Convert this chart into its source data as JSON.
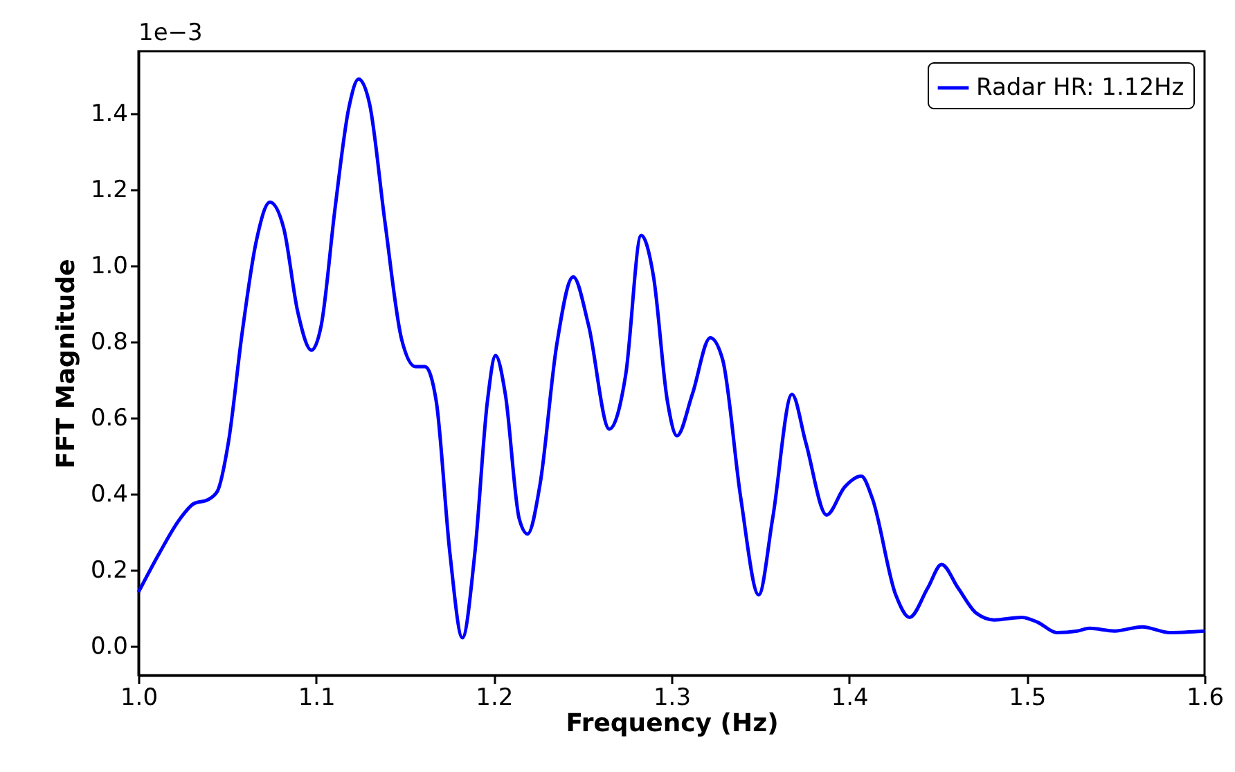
{
  "chart_data": {
    "type": "line",
    "xlabel": "Frequency (Hz)",
    "ylabel": "FFT Magnitude",
    "annotations": [
      "1e−3"
    ],
    "x": [
      1.0,
      1.0117,
      1.0234,
      1.0312,
      1.039,
      1.0444,
      1.0506,
      1.0584,
      1.0662,
      1.074,
      1.0818,
      1.0896,
      1.0974,
      1.1029,
      1.1107,
      1.1184,
      1.1239,
      1.1301,
      1.1387,
      1.1481,
      1.1559,
      1.1613,
      1.1676,
      1.1753,
      1.1823,
      1.1893,
      1.1964,
      1.201,
      1.2065,
      1.2143,
      1.219,
      1.226,
      1.2353,
      1.2447,
      1.2533,
      1.265,
      1.2743,
      1.2829,
      1.2899,
      1.2977,
      1.3031,
      1.3117,
      1.3218,
      1.3288,
      1.339,
      1.3491,
      1.3569,
      1.3678,
      1.3756,
      1.3873,
      1.3974,
      1.4068,
      1.413,
      1.4262,
      1.434,
      1.4442,
      1.452,
      1.4613,
      1.4715,
      1.4816,
      1.4972,
      1.5065,
      1.5167,
      1.5283,
      1.5353,
      1.5494,
      1.5649,
      1.5805,
      1.6
    ],
    "series": [
      {
        "name": "Radar HR: 1.12Hz",
        "color": "#0000ff",
        "values": [
          0.142,
          0.244,
          0.335,
          0.375,
          0.385,
          0.407,
          0.535,
          0.825,
          1.062,
          1.167,
          1.098,
          0.88,
          0.778,
          0.844,
          1.153,
          1.415,
          1.491,
          1.425,
          1.116,
          0.807,
          0.735,
          0.735,
          0.644,
          0.244,
          0.022,
          0.244,
          0.644,
          0.764,
          0.662,
          0.335,
          0.295,
          0.425,
          0.789,
          0.971,
          0.844,
          0.571,
          0.716,
          1.08,
          0.971,
          0.644,
          0.553,
          0.662,
          0.811,
          0.753,
          0.389,
          0.135,
          0.335,
          0.662,
          0.535,
          0.345,
          0.418,
          0.447,
          0.389,
          0.135,
          0.076,
          0.153,
          0.215,
          0.153,
          0.087,
          0.069,
          0.076,
          0.062,
          0.036,
          0.04,
          0.047,
          0.04,
          0.051,
          0.036,
          0.04
        ]
      }
    ],
    "xlim": [
      1.0,
      1.6
    ],
    "xticks": [
      {
        "value": 1.0,
        "label": "1.0"
      },
      {
        "value": 1.1,
        "label": "1.1"
      },
      {
        "value": 1.2,
        "label": "1.2"
      },
      {
        "value": 1.3,
        "label": "1.3"
      },
      {
        "value": 1.4,
        "label": "1.4"
      },
      {
        "value": 1.5,
        "label": "1.5"
      },
      {
        "value": 1.6,
        "label": "1.6"
      }
    ],
    "ylim": [
      -0.076,
      1.564
    ],
    "yticks": [
      {
        "value": 0.0,
        "label": "0.0"
      },
      {
        "value": 0.2,
        "label": "0.2"
      },
      {
        "value": 0.4,
        "label": "0.4"
      },
      {
        "value": 0.6,
        "label": "0.6"
      },
      {
        "value": 0.8,
        "label": "0.8"
      },
      {
        "value": 1.0,
        "label": "1.0"
      },
      {
        "value": 1.2,
        "label": "1.2"
      },
      {
        "value": 1.4,
        "label": "1.4"
      }
    ],
    "grid": false,
    "legend": "top right",
    "marker": "none",
    "line_style": "solid"
  }
}
